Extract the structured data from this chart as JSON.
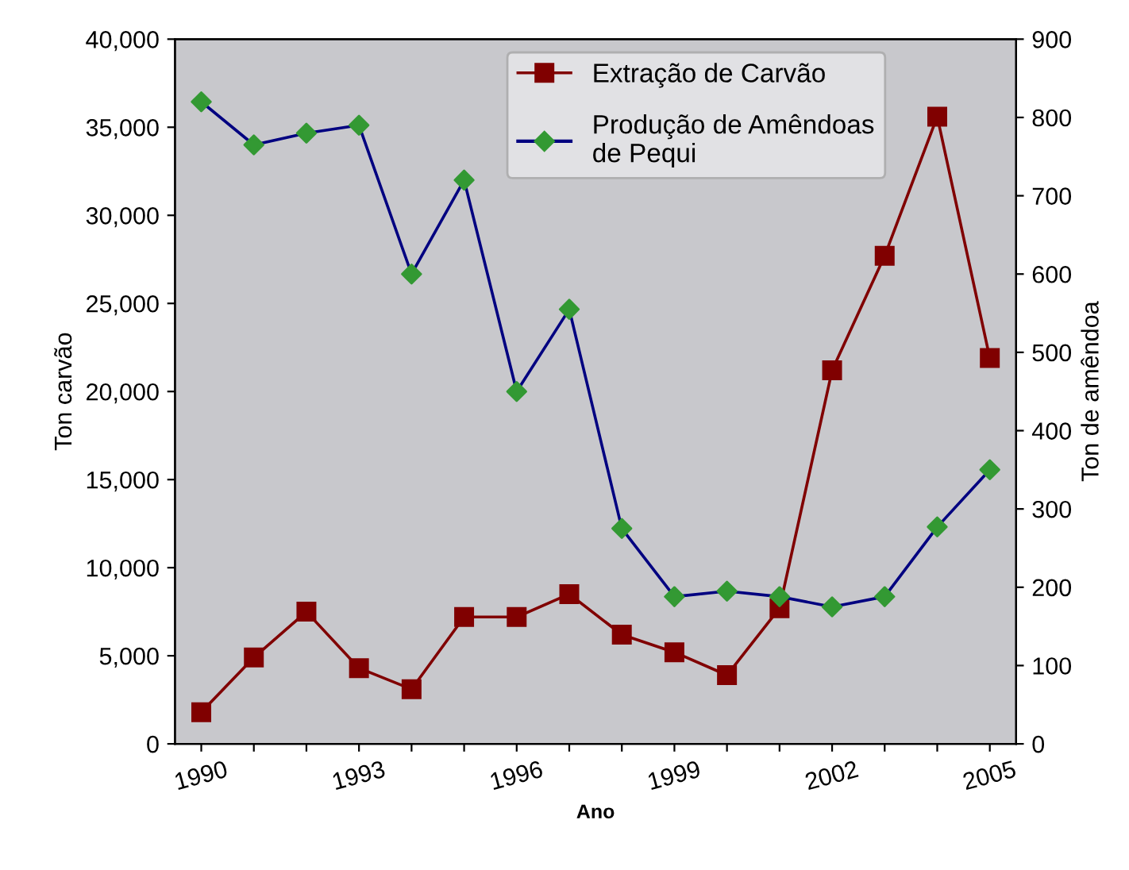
{
  "chart_data": {
    "type": "line",
    "xlabel": "Ano",
    "ylabel": "Ton carvão",
    "y2label": "Ton de amêndoa",
    "categories": [
      "1990",
      null,
      null,
      "1993",
      null,
      null,
      "1996",
      null,
      null,
      "1999",
      null,
      null,
      "2002",
      null,
      null,
      "2005"
    ],
    "series": [
      {
        "name": "Extração de Carvão",
        "color": "#800000",
        "marker": "square",
        "values": [
          1800,
          4900,
          7500,
          4300,
          3100,
          7200,
          7200,
          8500,
          6200,
          5200,
          3900,
          7700,
          21200,
          27700,
          35600,
          21900
        ]
      },
      {
        "name": "Produção de Amêndoas de Pequi",
        "color": "#000080",
        "colors": [
          "#339933",
          "#339933",
          "#339933",
          "#339933",
          "#339933",
          "#339933",
          "#339933",
          "#339933",
          "#339933",
          "#339933",
          "#339933",
          "#339933",
          "#339933",
          "#339933",
          "#339933",
          "#339933"
        ],
        "marker": "diamond",
        "axis": "y2",
        "values": [
          820,
          765,
          780,
          790,
          600,
          720,
          450,
          555,
          275,
          188,
          195,
          188,
          175,
          188,
          277,
          350
        ]
      }
    ],
    "ylim": [
      0,
      40000
    ],
    "yticks": [
      {
        "value": 0,
        "label": "0"
      },
      {
        "value": 5000,
        "label": "5,000"
      },
      {
        "value": 10000,
        "label": "10,000"
      },
      {
        "value": 15000,
        "label": "15,000"
      },
      {
        "value": 20000,
        "label": "20,000"
      },
      {
        "value": 25000,
        "label": "25,000"
      },
      {
        "value": 30000,
        "label": "30,000"
      },
      {
        "value": 35000,
        "label": "35,000"
      },
      {
        "value": 40000,
        "label": "40,000"
      }
    ],
    "y2lim": [
      0,
      900
    ],
    "y2ticks": [
      0,
      100,
      200,
      300,
      400,
      500,
      600,
      700,
      800,
      900
    ],
    "legend": "top right",
    "grid": false
  }
}
